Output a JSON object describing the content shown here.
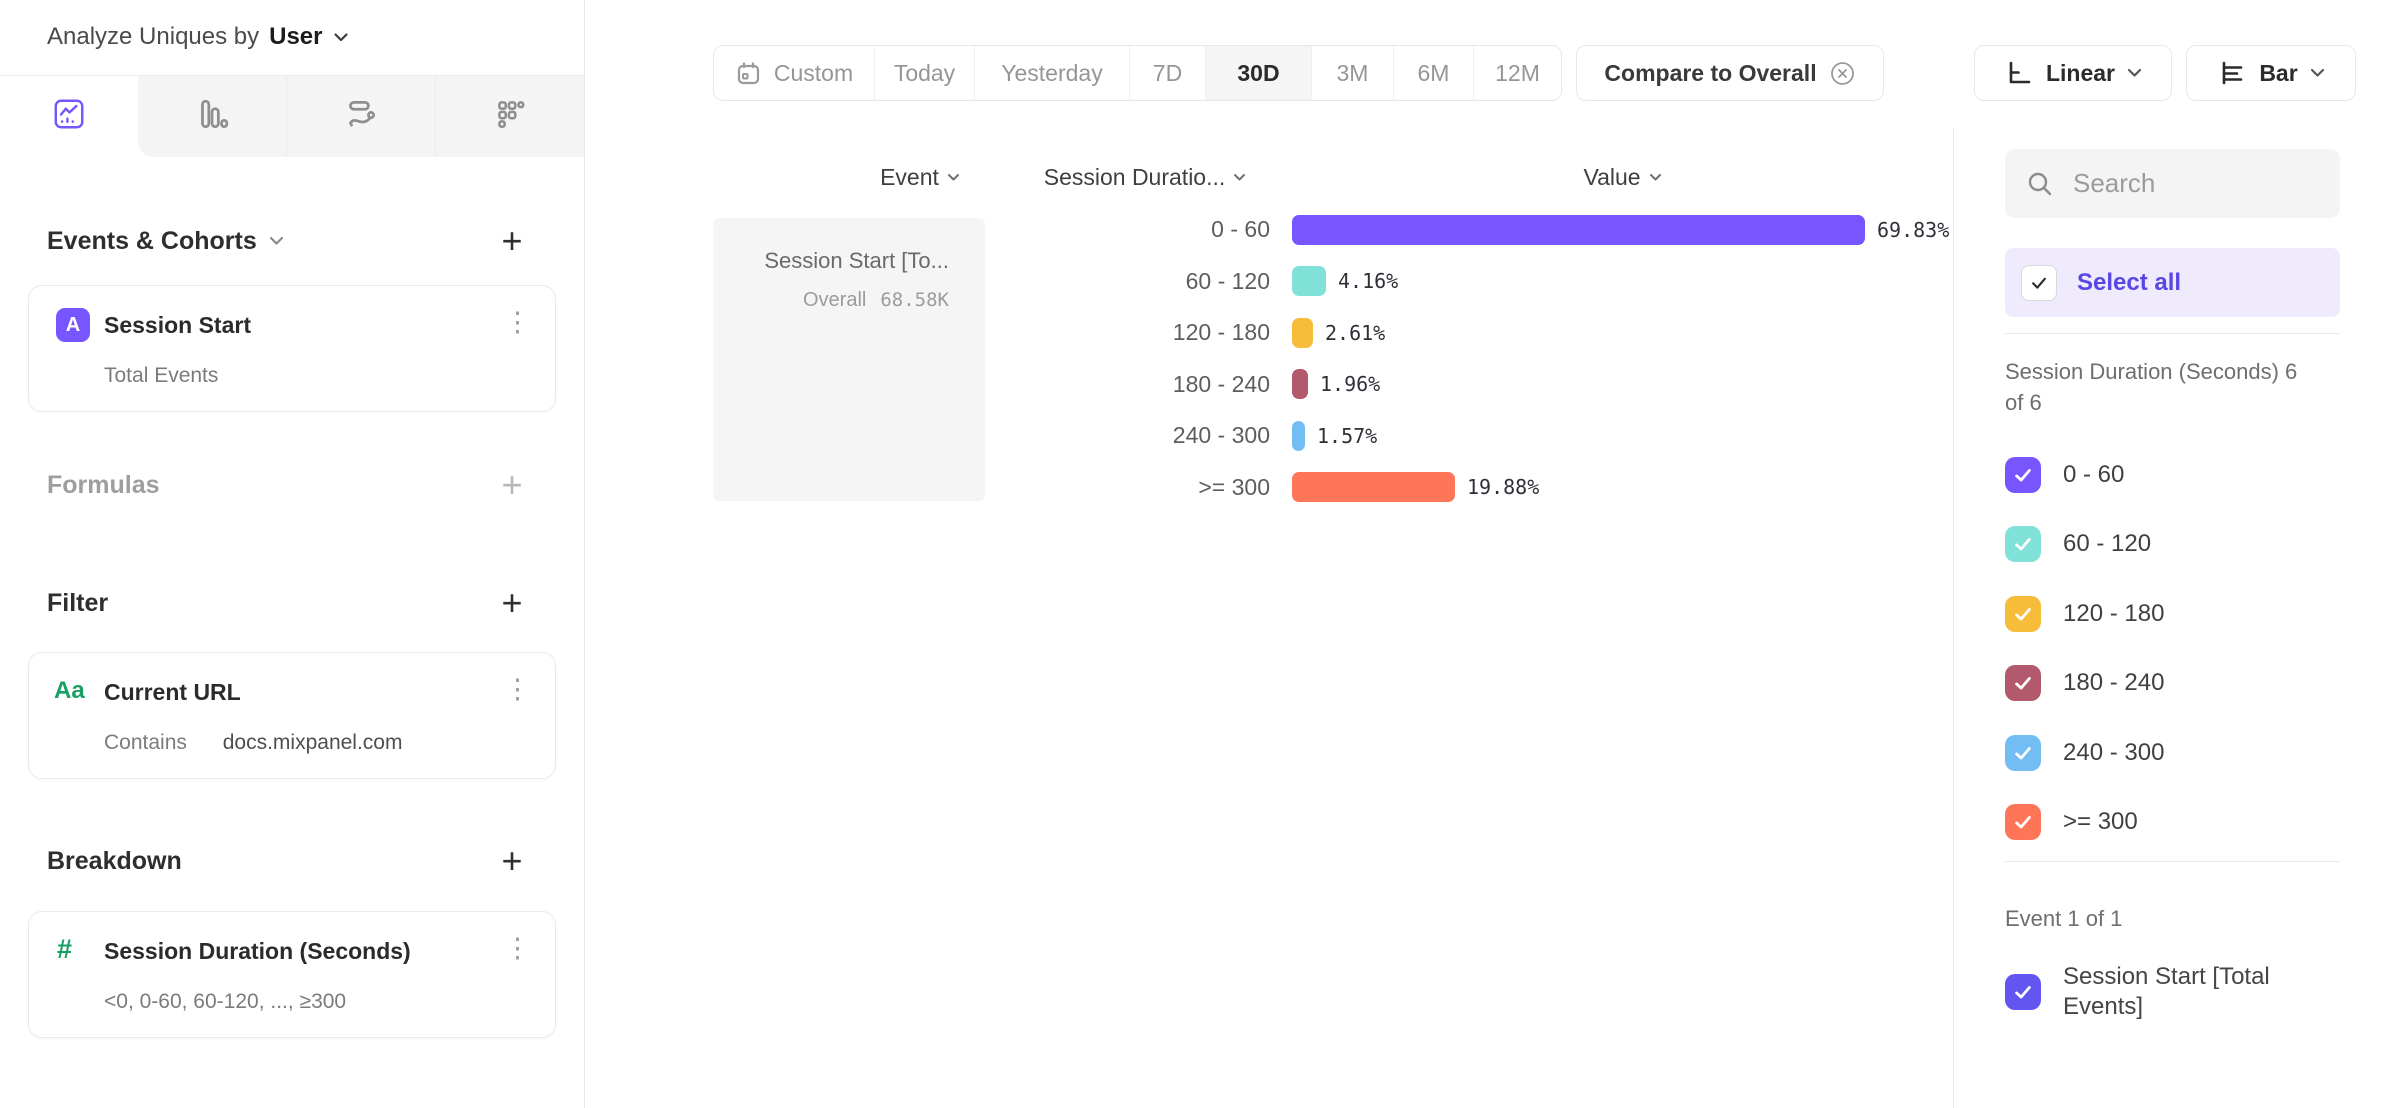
{
  "header": {
    "label": "Analyze Uniques by",
    "value": "User"
  },
  "icons": {
    "kebab": "⋮"
  },
  "tabs": [
    {
      "icon": "insights-chart-icon",
      "selected": true
    },
    {
      "icon": "funnels-bars-icon",
      "selected": false
    },
    {
      "icon": "flows-icon",
      "selected": false
    },
    {
      "icon": "retention-dots-icon",
      "selected": false
    }
  ],
  "panels": {
    "events": {
      "title": "Events & Cohorts",
      "add": "+",
      "card": {
        "badge": "A",
        "title": "Session Start",
        "menu": "⋮",
        "subtitle": "Total Events"
      }
    },
    "formulas": {
      "title": "Formulas",
      "add": "+"
    },
    "filter": {
      "title": "Filter",
      "add": "+",
      "card": {
        "icon": "Aa",
        "title": "Current URL",
        "menu": "⋮",
        "operator": "Contains",
        "value": "docs.mixpanel.com"
      }
    },
    "breakdown": {
      "title": "Breakdown",
      "add": "+",
      "card": {
        "icon": "#",
        "title": "Session Duration (Seconds)",
        "menu": "⋮",
        "subtitle": "<0, 0-60, 60-120, ..., ≥300"
      }
    }
  },
  "toolbar": {
    "date_ranges": [
      "Custom",
      "Today",
      "Yesterday",
      "7D",
      "30D",
      "3M",
      "6M",
      "12M"
    ],
    "selected_range": "30D",
    "compare": "Compare to Overall",
    "scale": "Linear",
    "chart_type": "Bar"
  },
  "table": {
    "columns": [
      "Event",
      "Session Duratio...",
      "Value"
    ],
    "event_cell": {
      "title": "Session Start [To...",
      "overall_label": "Overall",
      "overall_value": "68.58K"
    }
  },
  "chart_data": {
    "type": "bar",
    "orientation": "horizontal",
    "series_name": "Session Start [Total Events]",
    "categories": [
      "0 - 60",
      "60 - 120",
      "120 - 180",
      "180 - 240",
      "240 - 300",
      ">= 300"
    ],
    "values": [
      69.83,
      4.16,
      2.61,
      1.96,
      1.57,
      19.88
    ],
    "value_labels": [
      "69.83%",
      "4.16%",
      "2.61%",
      "1.96%",
      "1.57%",
      "19.88%"
    ],
    "colors": [
      "#7856FF",
      "#80E1D9",
      "#F8BC3B",
      "#B2596E",
      "#72BEF4",
      "#FF7557"
    ],
    "unit": "%",
    "overall_total": "68.58K",
    "xlim": [
      0,
      73
    ],
    "grid": false,
    "legend_position": "right-panel"
  },
  "right_panel": {
    "search_placeholder": "Search",
    "select_all_label": "Select all",
    "select_all_color": "#5847E5",
    "groups": [
      {
        "label": "Session Duration (Seconds) 6 of 6",
        "items": [
          {
            "label": "0 - 60",
            "color": "#7856FF",
            "checked": true
          },
          {
            "label": "60 - 120",
            "color": "#80E1D9",
            "checked": true
          },
          {
            "label": "120 - 180",
            "color": "#F8BC3B",
            "checked": true
          },
          {
            "label": "180 - 240",
            "color": "#B2596E",
            "checked": true
          },
          {
            "label": "240 - 300",
            "color": "#72BEF4",
            "checked": true
          },
          {
            "label": ">= 300",
            "color": "#FF7557",
            "checked": true
          }
        ]
      },
      {
        "label": "Event 1 of 1",
        "items": [
          {
            "label": "Session Start [Total Events]",
            "color": "#6355EF",
            "checked": true
          }
        ]
      }
    ]
  }
}
